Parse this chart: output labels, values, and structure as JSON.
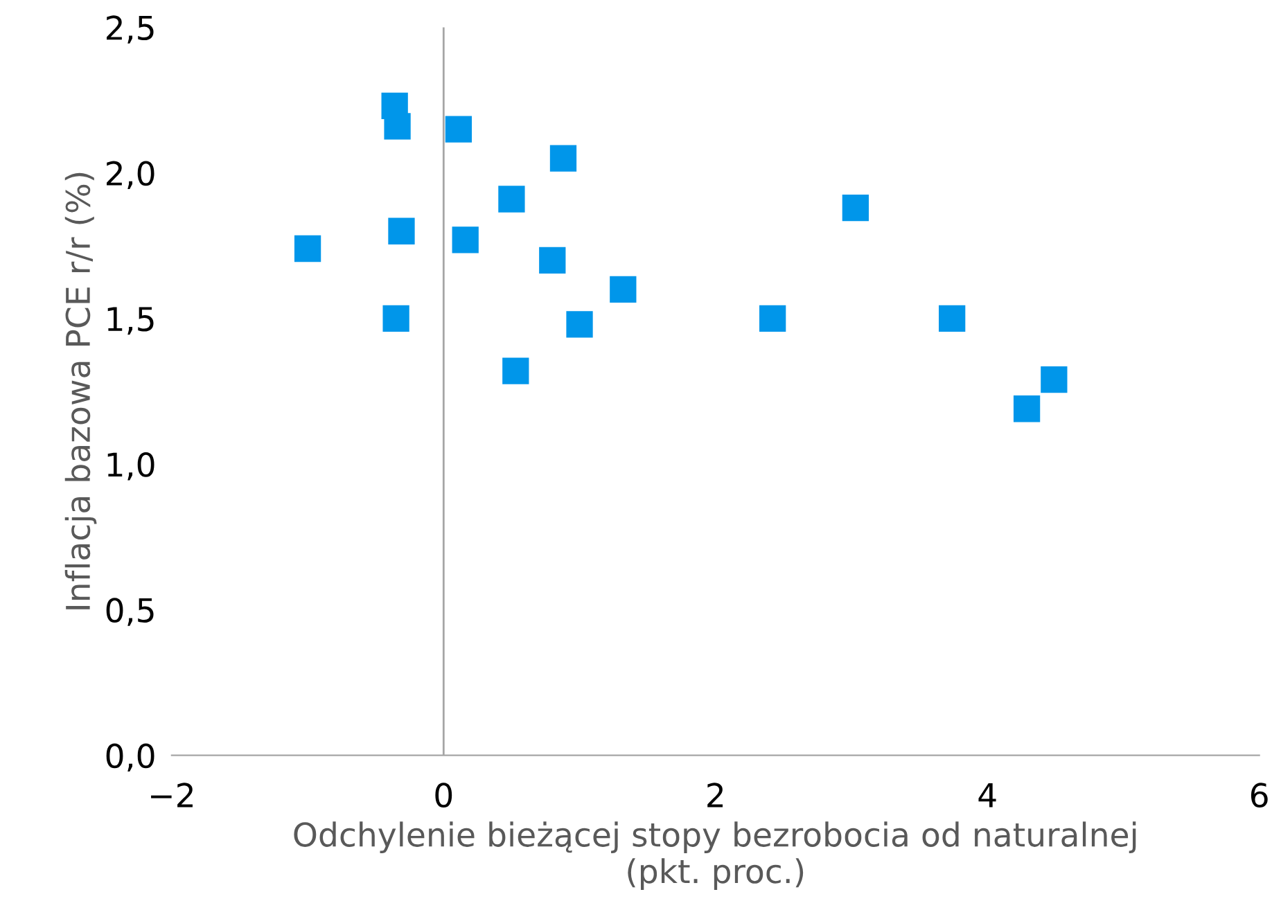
{
  "chart_data": {
    "type": "scatter",
    "xlabel": "Odchylenie bieżącej stopy bezrobocia od naturalnej\n(pkt. proc.)",
    "ylabel": "Inflacja bazowa PCE r/r (%)",
    "series": [
      {
        "color": "#0096ea",
        "x": [
          -0.36,
          -0.34,
          0.11,
          0.88,
          0.5,
          3.03,
          -1.0,
          -0.31,
          0.16,
          0.8,
          1.32,
          2.42,
          -0.35,
          1.0,
          3.74,
          0.53,
          4.29,
          4.49
        ],
        "values": [
          2.23,
          2.16,
          2.15,
          2.05,
          1.91,
          1.88,
          1.74,
          1.8,
          1.77,
          1.7,
          1.6,
          1.5,
          1.5,
          1.48,
          1.5,
          1.32,
          1.19,
          1.29
        ]
      }
    ],
    "marker": "square",
    "xlim": [
      -2,
      6
    ],
    "ylim": [
      0,
      2.5
    ],
    "xticks": [
      -2,
      0,
      2,
      4,
      6
    ],
    "yticks": [
      {
        "value": 0,
        "label": "0,0"
      },
      {
        "value": 0.5,
        "label": "0,5"
      },
      {
        "value": 1,
        "label": "1,0"
      },
      {
        "value": 1.5,
        "label": "1,5"
      },
      {
        "value": 2,
        "label": "2,0"
      },
      {
        "value": 2.5,
        "label": "2,5"
      }
    ],
    "ref_lines": [
      {
        "axis": "x",
        "value": 0,
        "color": "#a6a6a6"
      }
    ],
    "grid": false,
    "legend": false
  }
}
